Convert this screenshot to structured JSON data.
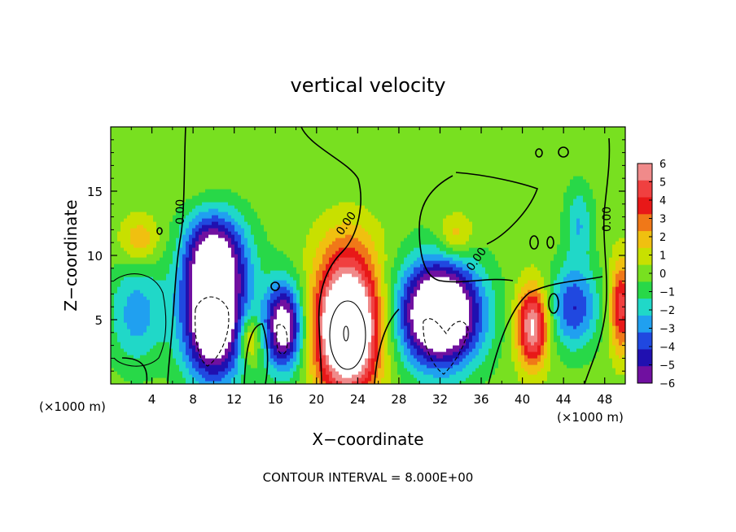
{
  "chart_data": {
    "type": "heatmap",
    "title": "vertical velocity",
    "xlabel": "X−coordinate",
    "ylabel": "Z−coordinate",
    "x_unit_left": "(×1000 m)",
    "x_unit_right": "(×1000 m)",
    "xlim": [
      0,
      50
    ],
    "ylim": [
      0,
      20
    ],
    "x_ticks": [
      4,
      8,
      12,
      16,
      20,
      24,
      28,
      32,
      36,
      40,
      44,
      48
    ],
    "y_ticks": [
      5,
      10,
      15
    ],
    "x_tick_labels": [
      "4",
      "8",
      "12",
      "16",
      "20",
      "24",
      "28",
      "32",
      "36",
      "40",
      "44",
      "48"
    ],
    "y_tick_labels": [
      "5",
      "10",
      "15"
    ],
    "footer": "CONTOUR INTERVAL = 8.000E+00",
    "contour_labels": [
      "0.00",
      "0.00",
      "0.00",
      "0.00"
    ],
    "colorbar": {
      "values": [
        6,
        5,
        4,
        3,
        2,
        1,
        0,
        -1,
        -2,
        -3,
        -4,
        -5,
        -6
      ],
      "labels": [
        "6",
        "5",
        "4",
        "3",
        "2",
        "1",
        "0",
        "−1",
        "−2",
        "−3",
        "−4",
        "−5",
        "−6"
      ],
      "colors": [
        "#f08a8a",
        "#f04040",
        "#e81818",
        "#f07818",
        "#f0c010",
        "#c8e000",
        "#78e020",
        "#28d848",
        "#20d8c8",
        "#20a0f0",
        "#2048e0",
        "#2010b0",
        "#7010a0"
      ]
    },
    "field": {
      "background": 0,
      "blobs": [
        {
          "x": 2.5,
          "z": 5.5,
          "w": -3,
          "rx": 3.2,
          "rz": 4.8
        },
        {
          "x": 2.8,
          "z": 11.2,
          "w": 2.5,
          "rx": 2.2,
          "rz": 2.2
        },
        {
          "x": 6.5,
          "z": 10,
          "w": 0.6,
          "rx": 2,
          "rz": 3
        },
        {
          "x": 10,
          "z": 5,
          "w": -10,
          "rx": 3.5,
          "rz": 5.5
        },
        {
          "x": 10,
          "z": 9.5,
          "w": -5,
          "rx": 4,
          "rz": 3.5
        },
        {
          "x": 10,
          "z": 12,
          "w": -2.2,
          "rx": 3.5,
          "rz": 3
        },
        {
          "x": 13.5,
          "z": 3.5,
          "w": 3.5,
          "rx": 1.3,
          "rz": 2.2
        },
        {
          "x": 16.8,
          "z": 4.5,
          "w": -8,
          "rx": 2.2,
          "rz": 4
        },
        {
          "x": 23,
          "z": 4.5,
          "w": 12,
          "rx": 3.6,
          "rz": 6
        },
        {
          "x": 23,
          "z": 11,
          "w": 0.8,
          "rx": 4,
          "rz": 3
        },
        {
          "x": 32,
          "z": 5.5,
          "w": -11,
          "rx": 4.6,
          "rz": 4.8
        },
        {
          "x": 33.5,
          "z": 11.5,
          "w": 2.5,
          "rx": 2,
          "rz": 2
        },
        {
          "x": 41,
          "z": 4.5,
          "w": 7,
          "rx": 1.8,
          "rz": 3.6
        },
        {
          "x": 45,
          "z": 6,
          "w": -4.5,
          "rx": 2.8,
          "rz": 3.8
        },
        {
          "x": 45.5,
          "z": 12.5,
          "w": -2.5,
          "rx": 1.6,
          "rz": 3.5
        },
        {
          "x": 49.6,
          "z": 6,
          "w": 5,
          "rx": 1.3,
          "rz": 4.2
        },
        {
          "x": 7.5,
          "z": 17,
          "w": 0.5,
          "rx": 4,
          "rz": 3
        },
        {
          "x": 30,
          "z": 17,
          "w": -0.4,
          "rx": 3,
          "rz": 3
        }
      ]
    }
  }
}
